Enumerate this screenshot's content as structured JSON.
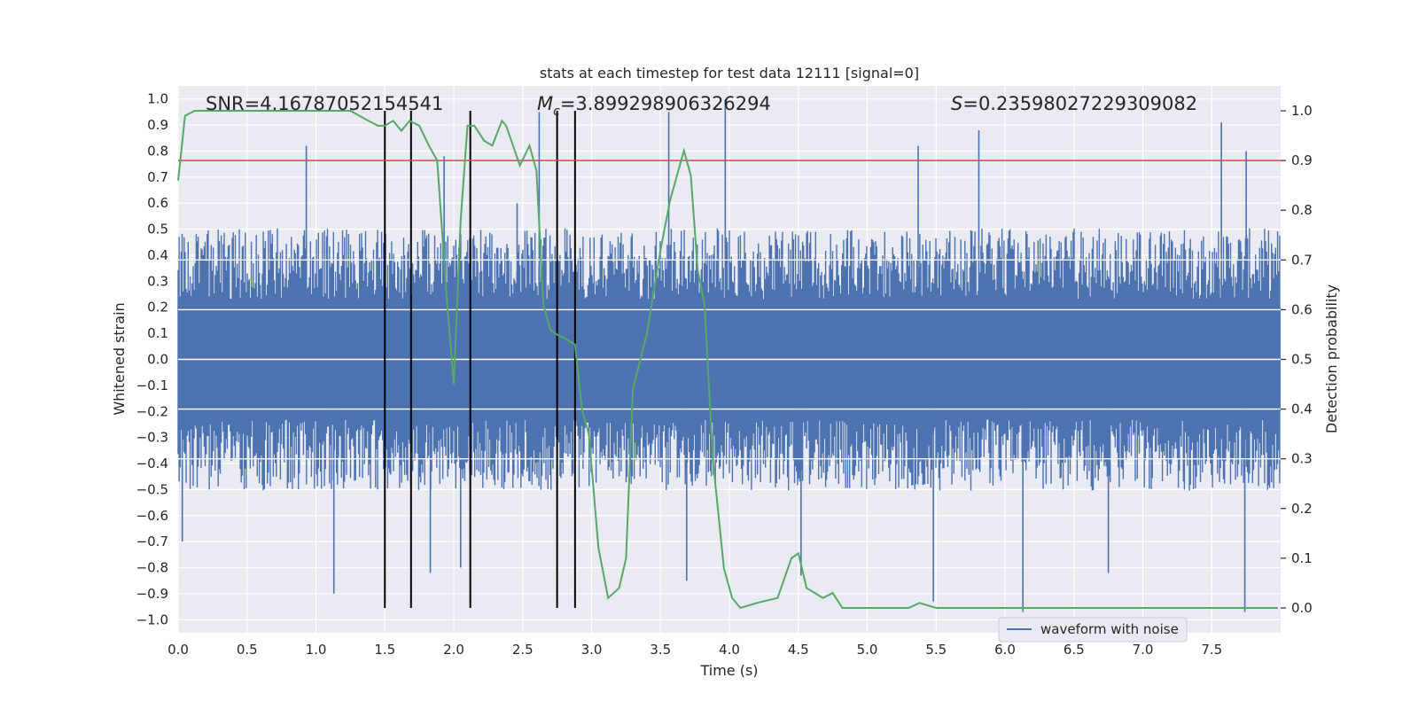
{
  "chart_data": {
    "type": "line",
    "title": "stats at each timestep for test data 12111 [signal=0]",
    "xlabel": "Time (s)",
    "ylabel_left": "Whitened strain",
    "ylabel_right": "Detection probability",
    "xlim": [
      0.0,
      8.0
    ],
    "ylim_left": [
      -1.05,
      1.05
    ],
    "ylim_right": [
      -0.05,
      1.05
    ],
    "x_ticks": [
      "0.0",
      "0.5",
      "1.0",
      "1.5",
      "2.0",
      "2.5",
      "3.0",
      "3.5",
      "4.0",
      "4.5",
      "5.0",
      "5.5",
      "6.0",
      "6.5",
      "7.0",
      "7.5"
    ],
    "y_left_ticks": [
      "1.0",
      "0.9",
      "0.8",
      "0.7",
      "0.6",
      "0.5",
      "0.4",
      "0.3",
      "0.2",
      "0.1",
      "0.0",
      "-0.1",
      "-0.2",
      "-0.3",
      "-0.4",
      "-0.5",
      "-0.6",
      "-0.7",
      "-0.8",
      "-0.9",
      "-1.0"
    ],
    "y_right_ticks": [
      "1.0",
      "0.9",
      "0.8",
      "0.7",
      "0.6",
      "0.5",
      "0.4",
      "0.3",
      "0.2",
      "0.1",
      "0.0"
    ],
    "grid": true,
    "legend": {
      "placement": "lower-right",
      "entries": [
        "waveform with noise"
      ]
    },
    "annotations": {
      "snr": "SNR=4.16787052154541",
      "mc_symbol": "M",
      "mc_subscript": "c",
      "mc_value": "=3.899298906326294",
      "s_symbol": "S",
      "s_value": "=0.23598027229309082"
    },
    "threshold": {
      "value_right": 0.9,
      "color": "#c44e52"
    },
    "event_times": [
      1.5,
      1.69,
      2.12,
      2.75,
      2.88
    ],
    "waveform": {
      "name": "waveform with noise",
      "color": "#4c72b0",
      "x_range": [
        0.0,
        8.0
      ],
      "typical_envelope": [
        -0.42,
        0.42
      ],
      "spikes": [
        {
          "x": 0.03,
          "y": -0.7
        },
        {
          "x": 0.93,
          "y": 0.82
        },
        {
          "x": 1.13,
          "y": -0.9
        },
        {
          "x": 1.5,
          "y": 0.55
        },
        {
          "x": 1.83,
          "y": -0.82
        },
        {
          "x": 1.93,
          "y": 0.78
        },
        {
          "x": 2.05,
          "y": -0.8
        },
        {
          "x": 2.46,
          "y": 0.6
        },
        {
          "x": 2.62,
          "y": 0.95
        },
        {
          "x": 3.56,
          "y": 0.95
        },
        {
          "x": 3.69,
          "y": -0.85
        },
        {
          "x": 3.97,
          "y": 1.0
        },
        {
          "x": 4.52,
          "y": -0.83
        },
        {
          "x": 5.37,
          "y": 0.82
        },
        {
          "x": 5.48,
          "y": -0.93
        },
        {
          "x": 5.81,
          "y": 0.88
        },
        {
          "x": 6.13,
          "y": -0.97
        },
        {
          "x": 6.75,
          "y": -0.82
        },
        {
          "x": 7.57,
          "y": 0.91
        },
        {
          "x": 7.75,
          "y": 0.8
        },
        {
          "x": 7.74,
          "y": -0.97
        }
      ]
    },
    "detection_probability": {
      "color": "#55a868",
      "x": [
        0.0,
        0.05,
        0.12,
        0.25,
        0.4,
        0.6,
        0.8,
        1.0,
        1.1,
        1.25,
        1.38,
        1.45,
        1.5,
        1.56,
        1.62,
        1.68,
        1.75,
        1.82,
        1.88,
        1.95,
        2.0,
        2.05,
        2.1,
        2.15,
        2.22,
        2.28,
        2.35,
        2.38,
        2.43,
        2.48,
        2.55,
        2.6,
        2.65,
        2.7,
        2.75,
        2.82,
        2.88,
        2.93,
        2.98,
        3.05,
        3.12,
        3.2,
        3.25,
        3.3,
        3.4,
        3.5,
        3.57,
        3.67,
        3.72,
        3.77,
        3.82,
        3.88,
        3.96,
        4.02,
        4.08,
        4.2,
        4.35,
        4.45,
        4.5,
        4.56,
        4.62,
        4.68,
        4.75,
        4.82,
        4.88,
        4.95,
        5.05,
        5.2,
        5.3,
        5.38,
        5.5,
        5.8,
        6.2,
        6.5,
        7.0,
        7.3,
        7.55,
        7.62,
        7.68,
        7.72,
        7.78,
        7.83,
        7.88,
        7.93,
        7.98
      ],
      "y": [
        0.86,
        0.99,
        1.0,
        1.0,
        1.0,
        1.0,
        1.0,
        1.0,
        1.0,
        1.0,
        0.98,
        0.97,
        0.97,
        0.98,
        0.96,
        0.98,
        0.97,
        0.93,
        0.9,
        0.62,
        0.45,
        0.78,
        0.97,
        0.97,
        0.94,
        0.93,
        0.98,
        0.97,
        0.93,
        0.89,
        0.93,
        0.88,
        0.61,
        0.56,
        0.55,
        0.54,
        0.53,
        0.4,
        0.35,
        0.12,
        0.02,
        0.04,
        0.1,
        0.44,
        0.55,
        0.72,
        0.82,
        0.92,
        0.87,
        0.68,
        0.61,
        0.3,
        0.08,
        0.02,
        0.0,
        0.01,
        0.02,
        0.1,
        0.11,
        0.04,
        0.03,
        0.02,
        0.03,
        0.0,
        0.0,
        0.0,
        0.0,
        0.0,
        0.0,
        0.01,
        0.0,
        0.0,
        0.0,
        0.0,
        0.0,
        0.0,
        0.0,
        0.0,
        0.0,
        0.0,
        0.0,
        0.0,
        0.0,
        0.0,
        0.0
      ]
    }
  }
}
